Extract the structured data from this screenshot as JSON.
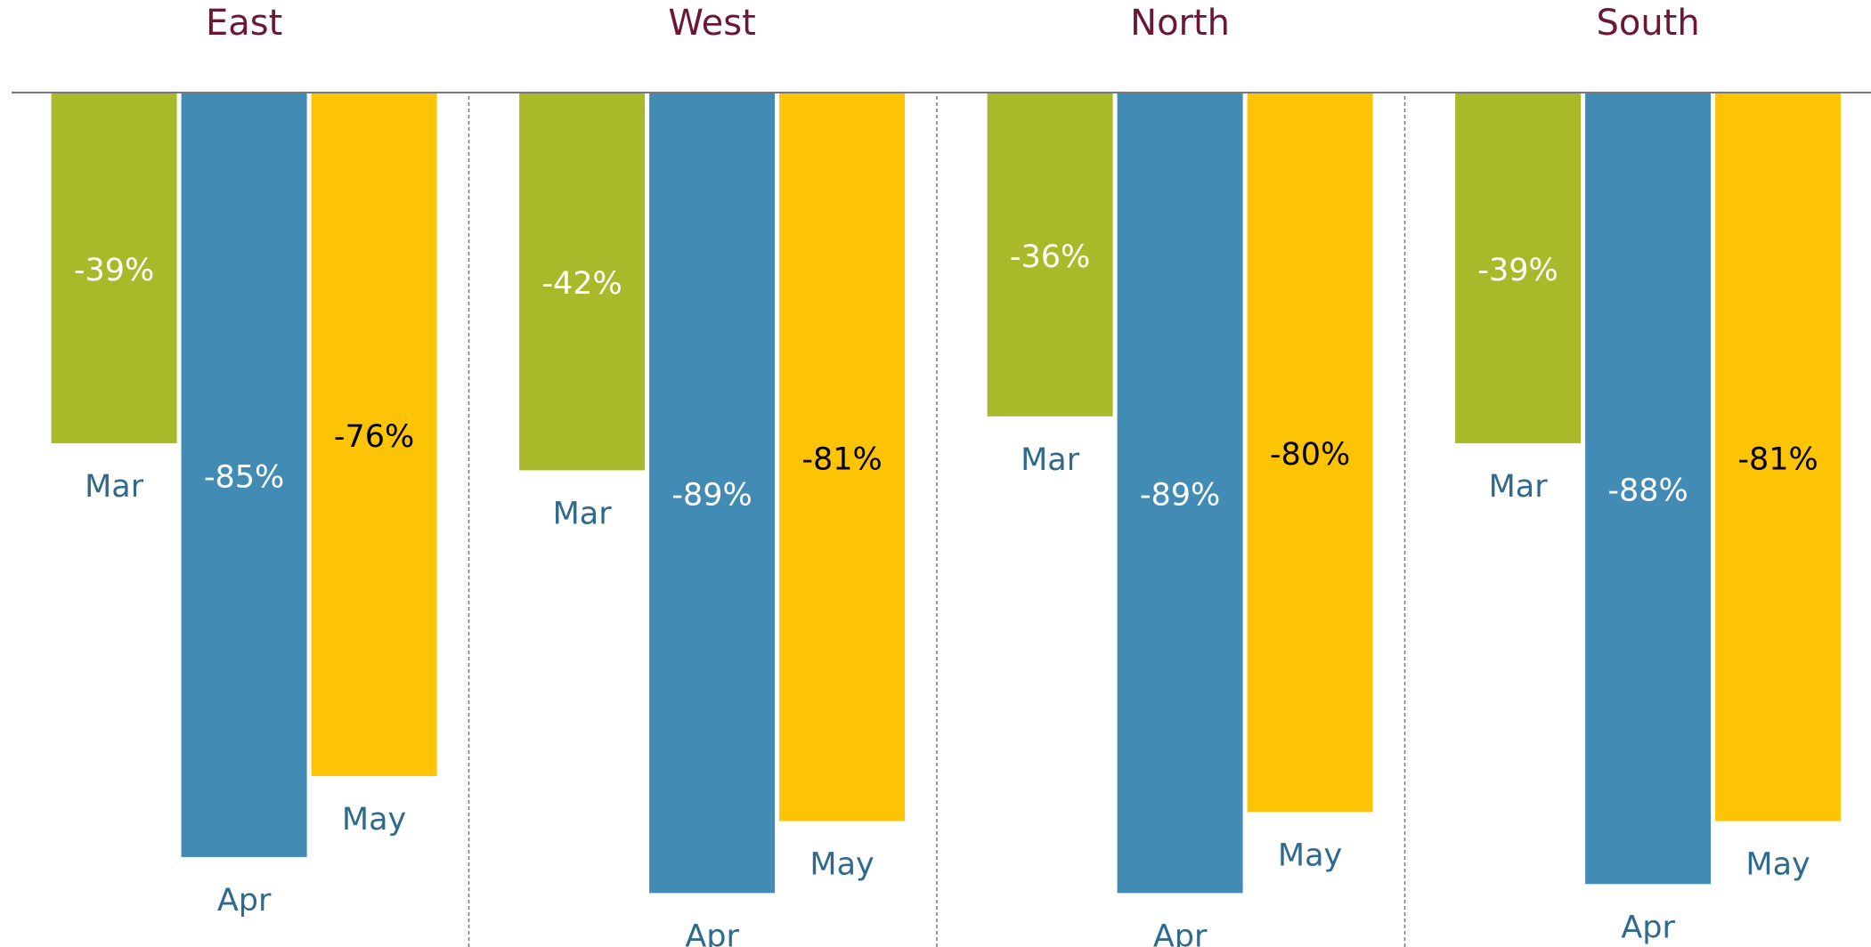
{
  "chart_data": {
    "type": "bar",
    "categories": [
      "East",
      "West",
      "North",
      "South"
    ],
    "ylim": [
      -95,
      0
    ],
    "series": [
      {
        "name": "Mar",
        "color": "#a8b92a",
        "label_color": "#ffffff",
        "values": [
          -39,
          -42,
          -36,
          -39
        ],
        "value_labels": [
          "-39%",
          "-42%",
          "-36%",
          "-39%"
        ]
      },
      {
        "name": "Apr",
        "color": "#428bb5",
        "label_color": "#ffffff",
        "values": [
          -85,
          -89,
          -89,
          -88
        ],
        "value_labels": [
          "-85%",
          "-89%",
          "-89%",
          "-88%"
        ]
      },
      {
        "name": "May",
        "color": "#fdc305",
        "label_color": "#000000",
        "values": [
          -76,
          -81,
          -80,
          -81
        ],
        "value_labels": [
          "-76%",
          "-81%",
          "-80%",
          "-81%"
        ]
      }
    ]
  }
}
